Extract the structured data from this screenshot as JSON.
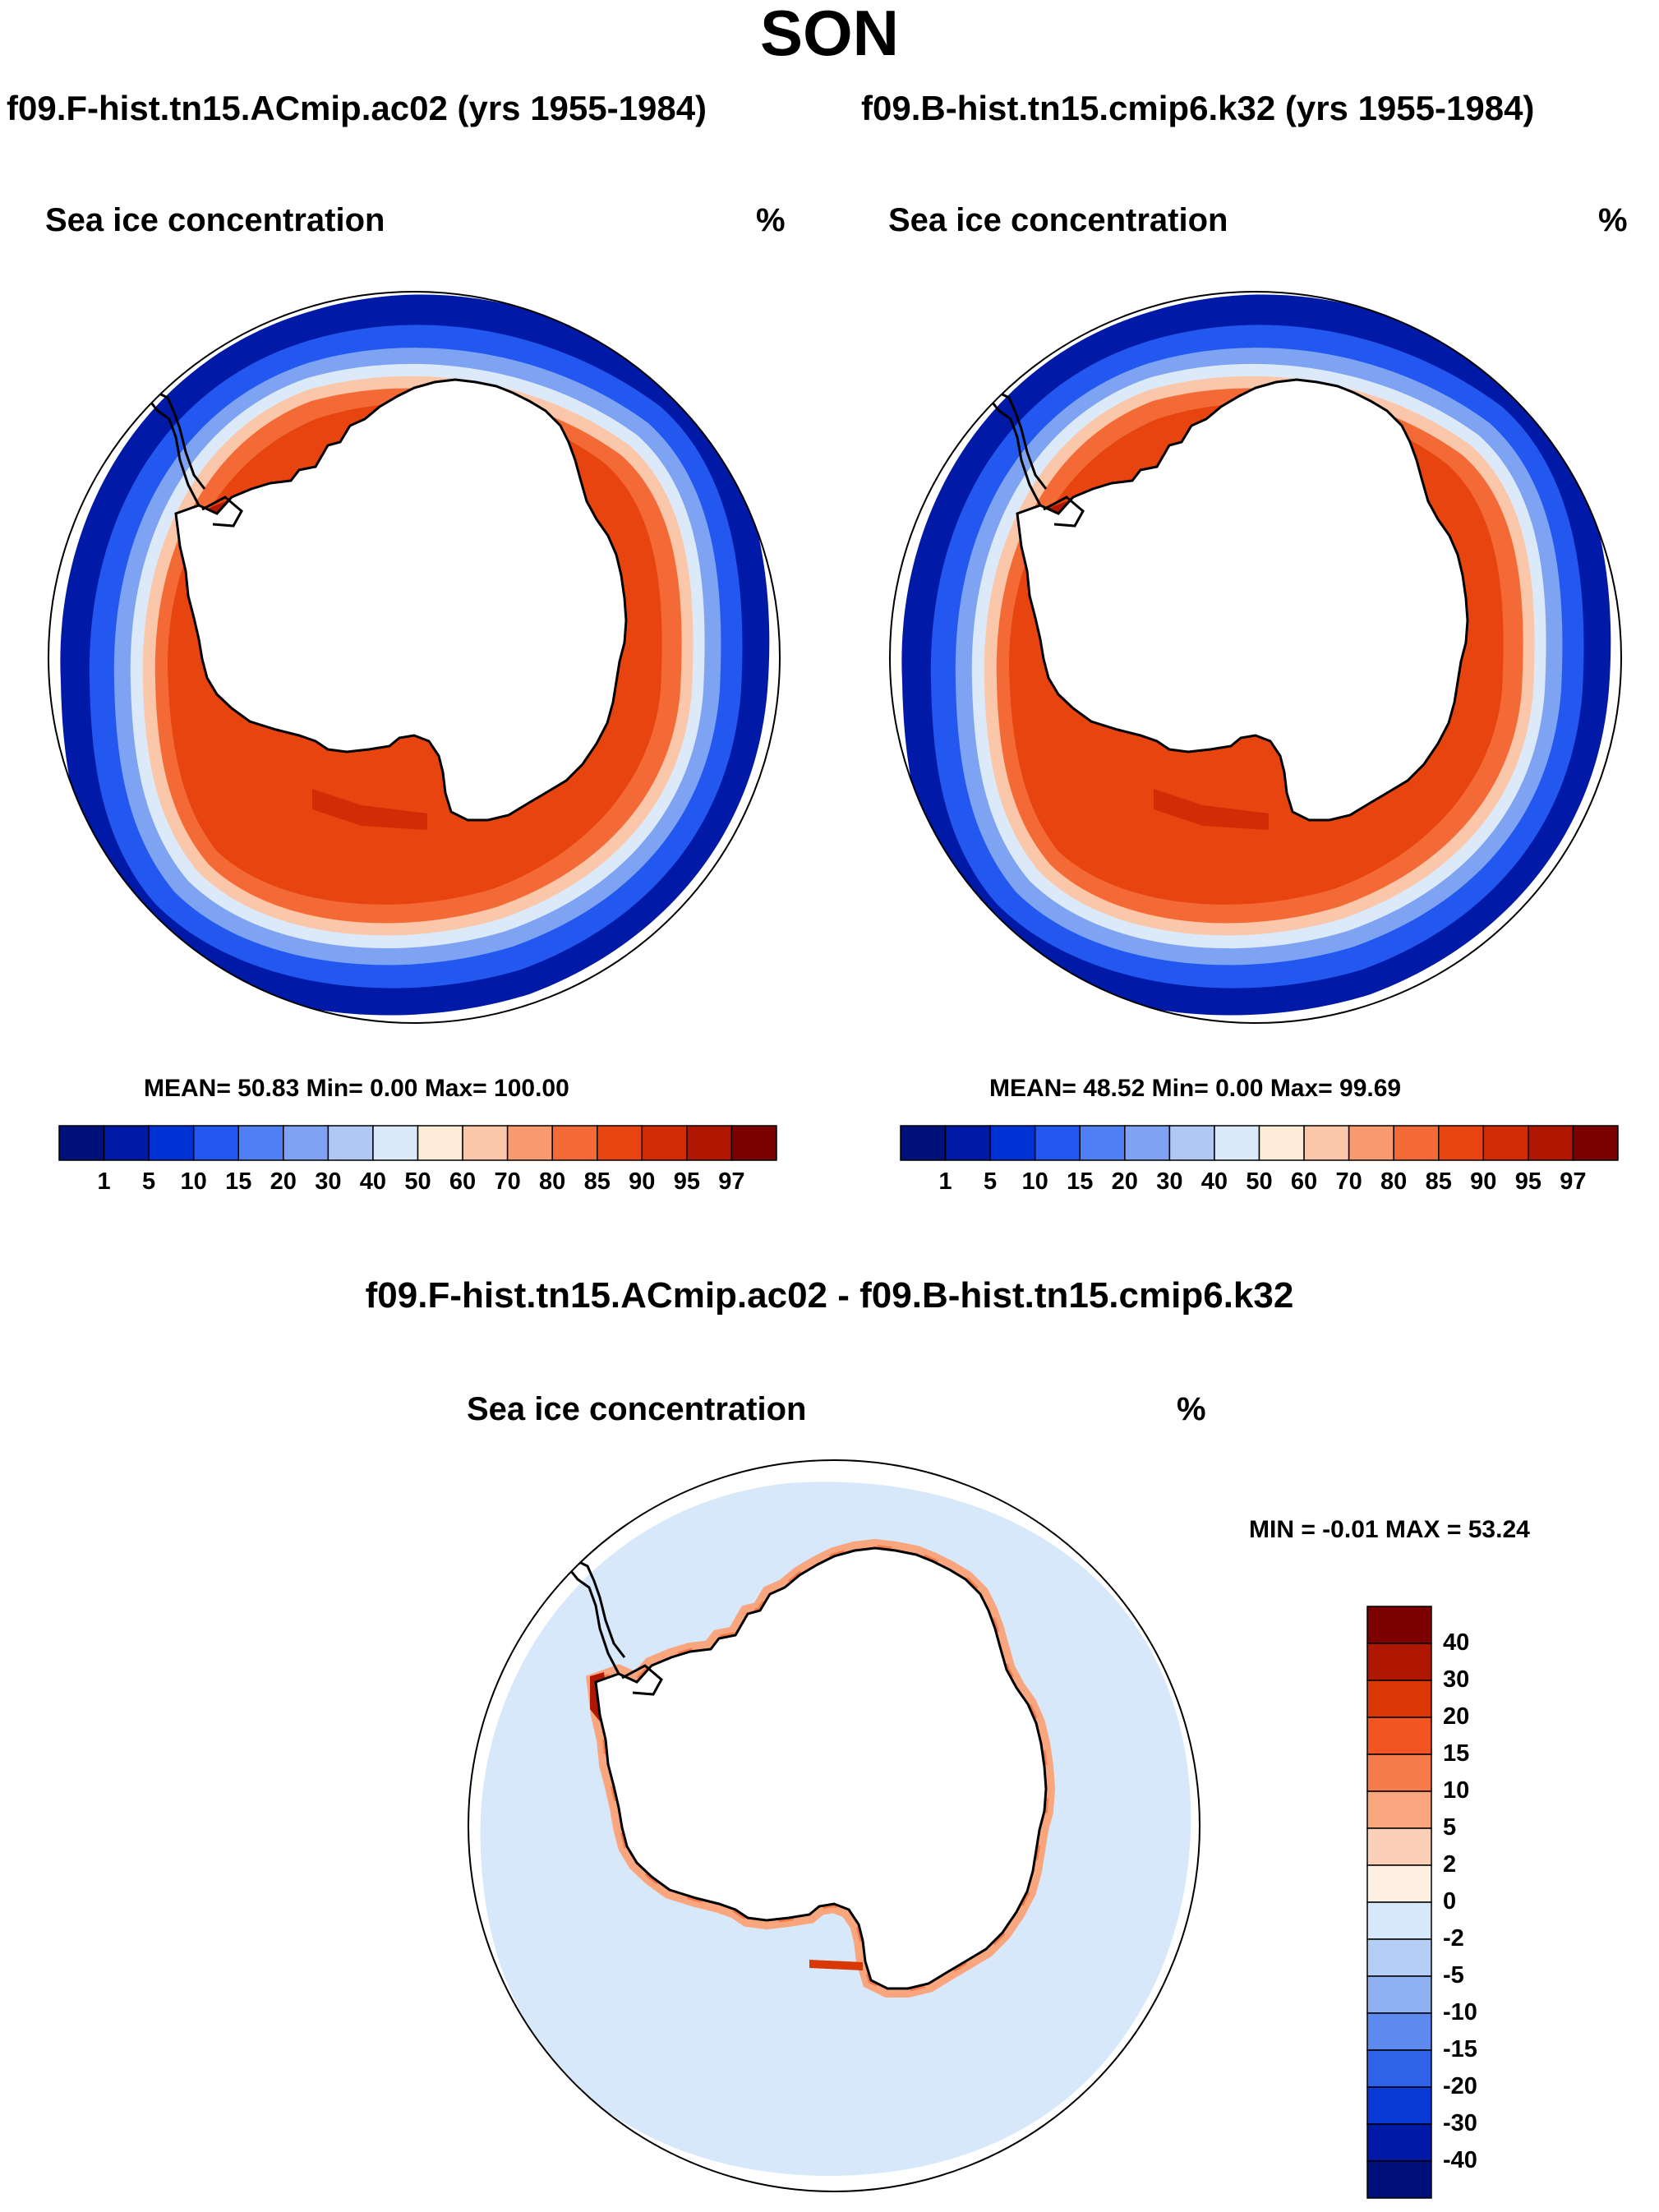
{
  "figure": {
    "title": "SON",
    "case_a_title": "f09.F-hist.tn15.ACmip.ac02 (yrs 1955-1984)",
    "case_b_title": "f09.B-hist.tn15.cmip6.k32 (yrs 1955-1984)",
    "diff_title": "f09.F-hist.tn15.ACmip.ac02 - f09.B-hist.tn15.cmip6.k32"
  },
  "panels": {
    "left": {
      "variable": "Sea ice concentration",
      "units": "%",
      "stats": "MEAN=  50.83  Min=   0.00  Max= 100.00"
    },
    "right": {
      "variable": "Sea ice concentration",
      "units": "%",
      "stats": "MEAN=  48.52  Min=   0.00  Max=  99.69"
    },
    "diff": {
      "variable": "Sea ice concentration",
      "units": "%",
      "stats": "MIN =  -0.01 MAX =  53.24"
    }
  },
  "colorbars": {
    "conc_colors": [
      "#00107a",
      "#0019a6",
      "#0033d6",
      "#2258ef",
      "#4f7ff5",
      "#7ea3f2",
      "#b0c8f3",
      "#dce9f8",
      "#fdebd9",
      "#fbc7aa",
      "#f89a6f",
      "#f36a36",
      "#e8440f",
      "#d12c06",
      "#b01700",
      "#7d0000"
    ],
    "conc_labels": [
      "1",
      "5",
      "10",
      "15",
      "20",
      "30",
      "40",
      "50",
      "60",
      "70",
      "80",
      "85",
      "90",
      "95",
      "97"
    ],
    "diff_colors": [
      "#7d0000",
      "#b01700",
      "#d93805",
      "#f25422",
      "#f67b4a",
      "#f9a67f",
      "#fcd0b8",
      "#fdefe2",
      "#d6e8fa",
      "#b5cef5",
      "#8fb0f1",
      "#5e8aef",
      "#2f62e8",
      "#0a3ad6",
      "#0019a6",
      "#00107a"
    ],
    "diff_labels": [
      "40",
      "30",
      "20",
      "15",
      "10",
      "5",
      "2",
      "0",
      "-2",
      "-5",
      "-10",
      "-15",
      "-20",
      "-30",
      "-40"
    ]
  }
}
